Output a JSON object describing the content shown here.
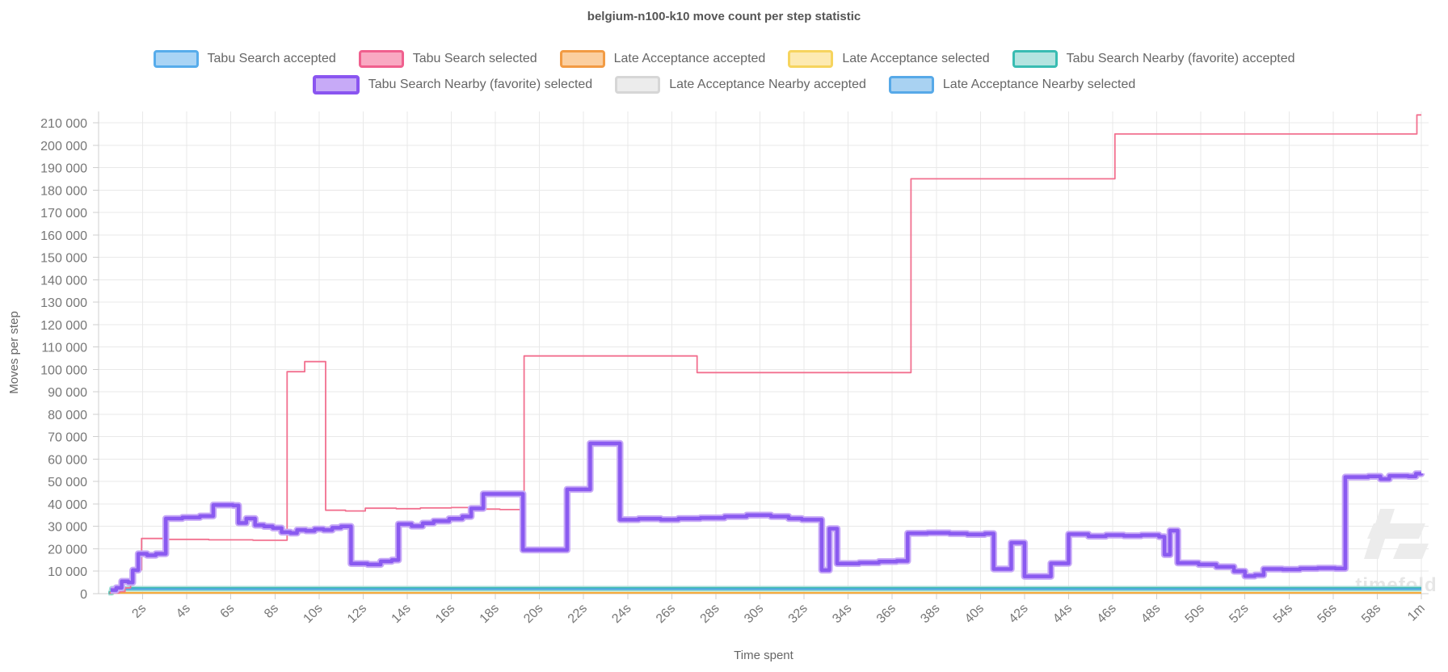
{
  "chart_title": "belgium-n100-k10 move count per step statistic",
  "watermark": {
    "text": "timefold",
    "logo_color": "#ececec",
    "text_color": "#e6e6e6"
  },
  "chart_data": {
    "type": "line",
    "subtype": "step-after",
    "title": "belgium-n100-k10 move count per step statistic",
    "xlabel": "Time spent",
    "ylabel": "Moves per step",
    "grid": true,
    "legend_position": "top",
    "xlim_seconds": [
      0,
      60.3
    ],
    "ylim": [
      0,
      215000
    ],
    "x_axis": {
      "title": "Time spent",
      "tick_values": [
        2,
        4,
        6,
        8,
        10,
        12,
        14,
        16,
        18,
        20,
        22,
        24,
        26,
        28,
        30,
        32,
        34,
        36,
        38,
        40,
        42,
        44,
        46,
        48,
        50,
        52,
        54,
        56,
        58,
        60
      ],
      "tick_labels": [
        "2s",
        "4s",
        "6s",
        "8s",
        "10s",
        "12s",
        "14s",
        "16s",
        "18s",
        "20s",
        "22s",
        "24s",
        "26s",
        "28s",
        "30s",
        "32s",
        "34s",
        "36s",
        "38s",
        "40s",
        "42s",
        "44s",
        "46s",
        "48s",
        "50s",
        "52s",
        "54s",
        "56s",
        "58s",
        "1m"
      ]
    },
    "y_axis": {
      "title": "Moves per step",
      "tick_step": 10000,
      "tick_values": [
        0,
        10000,
        20000,
        30000,
        40000,
        50000,
        60000,
        70000,
        80000,
        90000,
        100000,
        110000,
        120000,
        130000,
        140000,
        150000,
        160000,
        170000,
        180000,
        190000,
        200000,
        210000
      ],
      "tick_labels": [
        "0",
        "10 000",
        "20 000",
        "30 000",
        "40 000",
        "50 000",
        "60 000",
        "70 000",
        "80 000",
        "90 000",
        "100 000",
        "110 000",
        "120 000",
        "130 000",
        "140 000",
        "150 000",
        "160 000",
        "170 000",
        "180 000",
        "190 000",
        "200 000",
        "210 000"
      ]
    },
    "legend_rows": [
      5,
      3
    ],
    "draw_order": [
      0,
      6,
      4,
      7,
      3,
      2,
      1,
      5
    ],
    "series": [
      {
        "name": "Tabu Search accepted",
        "legend_fill": "#a9d4f5",
        "legend_stroke": "#57aceb",
        "legend_border_width": 3,
        "line_color": "#7ec3f2",
        "line_width": 2.5,
        "points": [
          [
            0.5,
            1900
          ],
          [
            60,
            1900
          ]
        ]
      },
      {
        "name": "Tabu Search selected",
        "legend_fill": "#f9a9c2",
        "legend_stroke": "#f0608e",
        "legend_border_width": 3,
        "line_color": "#f2708f",
        "line_width": 1.8,
        "points": [
          [
            0.5,
            300
          ],
          [
            0.95,
            900
          ],
          [
            1.2,
            2600
          ],
          [
            1.45,
            5300
          ],
          [
            1.65,
            10600
          ],
          [
            1.95,
            24600
          ],
          [
            3.0,
            24200
          ],
          [
            5.0,
            24000
          ],
          [
            7.0,
            23800
          ],
          [
            8.55,
            99000
          ],
          [
            9.35,
            103500
          ],
          [
            10.3,
            37200
          ],
          [
            11.2,
            36900
          ],
          [
            12.1,
            38100
          ],
          [
            13.5,
            37900
          ],
          [
            14.6,
            38200
          ],
          [
            16.0,
            38400
          ],
          [
            17.2,
            37700
          ],
          [
            18.2,
            37500
          ],
          [
            19.3,
            106000
          ],
          [
            27.15,
            98600
          ],
          [
            36.85,
            185000
          ],
          [
            46.1,
            205000
          ],
          [
            59.8,
            213500
          ],
          [
            60,
            213500
          ]
        ]
      },
      {
        "name": "Late Acceptance accepted",
        "legend_fill": "#fbcfa0",
        "legend_stroke": "#f29b44",
        "legend_border_width": 3,
        "line_color": "#f5a83c",
        "line_width": 2,
        "points": [
          [
            0.5,
            330
          ],
          [
            60,
            330
          ]
        ]
      },
      {
        "name": "Late Acceptance selected",
        "legend_fill": "#fdeab2",
        "legend_stroke": "#f6d45e",
        "legend_border_width": 3,
        "line_color": "#f7d863",
        "line_width": 2,
        "points": [
          [
            0.5,
            430
          ],
          [
            60,
            430
          ]
        ]
      },
      {
        "name": "Tabu Search Nearby (favorite) accepted",
        "legend_fill": "#b4e4e0",
        "legend_stroke": "#39bcb2",
        "legend_border_width": 3,
        "line_color": "#2eb5ab",
        "line_width": 3.5,
        "halo_color": "#a8ded9",
        "halo_width": 7,
        "points": [
          [
            0.45,
            400
          ],
          [
            0.6,
            2200
          ],
          [
            60,
            2200
          ]
        ]
      },
      {
        "name": "Tabu Search Nearby (favorite) selected",
        "legend_fill": "#c7aaf7",
        "legend_stroke": "#8a55f0",
        "legend_border_width": 4,
        "line_color": "#8a5af0",
        "line_width": 4.5,
        "halo_color": "#c7a9f7",
        "halo_width": 8.5,
        "points": [
          [
            0.55,
            1600
          ],
          [
            0.8,
            2600
          ],
          [
            1.05,
            5500
          ],
          [
            1.35,
            5000
          ],
          [
            1.55,
            10500
          ],
          [
            1.8,
            17800
          ],
          [
            2.2,
            17100
          ],
          [
            2.6,
            17800
          ],
          [
            3.05,
            33500
          ],
          [
            3.8,
            34000
          ],
          [
            4.6,
            34600
          ],
          [
            5.2,
            39500
          ],
          [
            6.1,
            39300
          ],
          [
            6.35,
            31500
          ],
          [
            6.7,
            33500
          ],
          [
            7.1,
            30500
          ],
          [
            7.5,
            30000
          ],
          [
            7.9,
            29300
          ],
          [
            8.3,
            27400
          ],
          [
            8.7,
            27000
          ],
          [
            9.0,
            28400
          ],
          [
            9.4,
            28000
          ],
          [
            9.8,
            28800
          ],
          [
            10.2,
            28400
          ],
          [
            10.6,
            29400
          ],
          [
            11.0,
            30000
          ],
          [
            11.45,
            13400
          ],
          [
            12.2,
            13000
          ],
          [
            12.8,
            14400
          ],
          [
            13.3,
            15000
          ],
          [
            13.6,
            31000
          ],
          [
            14.2,
            30100
          ],
          [
            14.7,
            31400
          ],
          [
            15.2,
            32400
          ],
          [
            15.9,
            33400
          ],
          [
            16.5,
            34400
          ],
          [
            16.9,
            38000
          ],
          [
            17.45,
            44500
          ],
          [
            19.25,
            19500
          ],
          [
            21.25,
            46500
          ],
          [
            22.3,
            67000
          ],
          [
            23.65,
            33000
          ],
          [
            24.5,
            33400
          ],
          [
            25.5,
            33000
          ],
          [
            26.3,
            33500
          ],
          [
            27.3,
            33800
          ],
          [
            28.4,
            34400
          ],
          [
            29.4,
            35000
          ],
          [
            30.5,
            34400
          ],
          [
            31.3,
            33500
          ],
          [
            31.9,
            33000
          ],
          [
            32.8,
            10500
          ],
          [
            33.15,
            29000
          ],
          [
            33.5,
            13400
          ],
          [
            34.5,
            13800
          ],
          [
            35.4,
            14300
          ],
          [
            36.2,
            14600
          ],
          [
            36.7,
            26900
          ],
          [
            37.6,
            27100
          ],
          [
            38.6,
            26800
          ],
          [
            39.4,
            26400
          ],
          [
            40.2,
            26800
          ],
          [
            40.6,
            11000
          ],
          [
            41.4,
            22700
          ],
          [
            42.0,
            7700
          ],
          [
            43.2,
            13500
          ],
          [
            44.0,
            26500
          ],
          [
            44.9,
            25600
          ],
          [
            45.7,
            26100
          ],
          [
            46.5,
            25800
          ],
          [
            47.3,
            26100
          ],
          [
            48.1,
            25400
          ],
          [
            48.35,
            17400
          ],
          [
            48.6,
            28100
          ],
          [
            48.95,
            13700
          ],
          [
            49.9,
            13000
          ],
          [
            50.7,
            12000
          ],
          [
            51.5,
            10000
          ],
          [
            52.0,
            7800
          ],
          [
            52.45,
            8300
          ],
          [
            52.85,
            11000
          ],
          [
            53.7,
            10800
          ],
          [
            54.5,
            11200
          ],
          [
            55.3,
            11400
          ],
          [
            56.1,
            11200
          ],
          [
            56.55,
            52000
          ],
          [
            57.6,
            52300
          ],
          [
            58.15,
            51100
          ],
          [
            58.55,
            52500
          ],
          [
            59.4,
            52300
          ],
          [
            59.75,
            53500
          ],
          [
            60,
            53600
          ]
        ]
      },
      {
        "name": "Late Acceptance Nearby accepted",
        "legend_fill": "#ececec",
        "legend_stroke": "#d6d6d6",
        "legend_border_width": 3,
        "line_color": "#d9d9d9",
        "line_width": 2.5,
        "points": [
          [
            0.5,
            2100
          ],
          [
            60,
            2100
          ]
        ]
      },
      {
        "name": "Late Acceptance Nearby selected",
        "legend_fill": "#a9d2f2",
        "legend_stroke": "#57a9e8",
        "legend_border_width": 3,
        "line_color": "#58a9e8",
        "line_width": 2,
        "points": [
          [
            0.55,
            2000
          ],
          [
            60,
            2000
          ]
        ]
      }
    ]
  }
}
